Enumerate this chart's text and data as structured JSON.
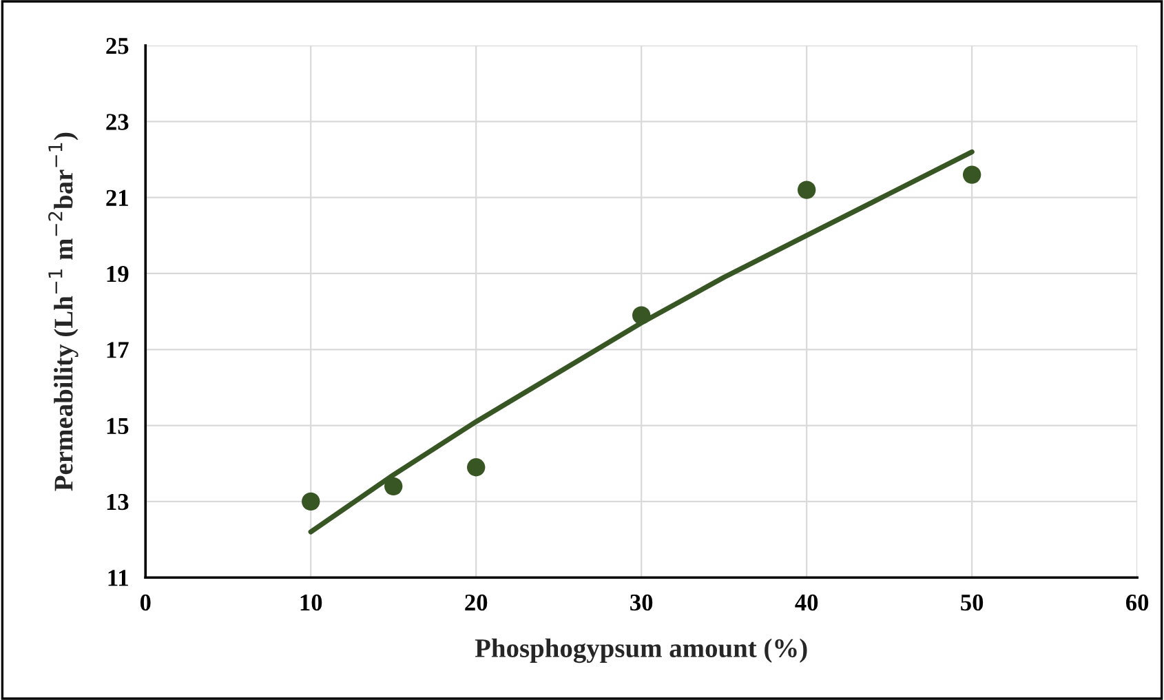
{
  "chart_data": {
    "type": "scatter",
    "xlabel": "Phosphogypsum amount (%)",
    "ylabel": "Permeability (Lh$^{−1}$ m$^{−2}$bar$^{−1}$)",
    "x": [
      10,
      15,
      20,
      30,
      40,
      50
    ],
    "series": [
      {
        "color": "#375623",
        "values": [
          13.0,
          13.4,
          13.9,
          17.9,
          21.2,
          21.6
        ],
        "marker": "circle"
      },
      {
        "type": "line",
        "color": "#375623",
        "x": [
          10,
          15,
          20,
          25,
          30,
          35,
          40,
          45,
          50
        ],
        "values": [
          12.2,
          13.7,
          15.1,
          16.4,
          17.7,
          18.9,
          20.0,
          21.1,
          22.2
        ]
      }
    ],
    "xlim": [
      0,
      60
    ],
    "xticks": [
      0,
      10,
      20,
      30,
      40,
      50,
      60
    ],
    "ylim": [
      11,
      25
    ],
    "yticks": [
      11,
      13,
      15,
      17,
      19,
      21,
      23,
      25
    ],
    "grid": true,
    "legend": false
  }
}
